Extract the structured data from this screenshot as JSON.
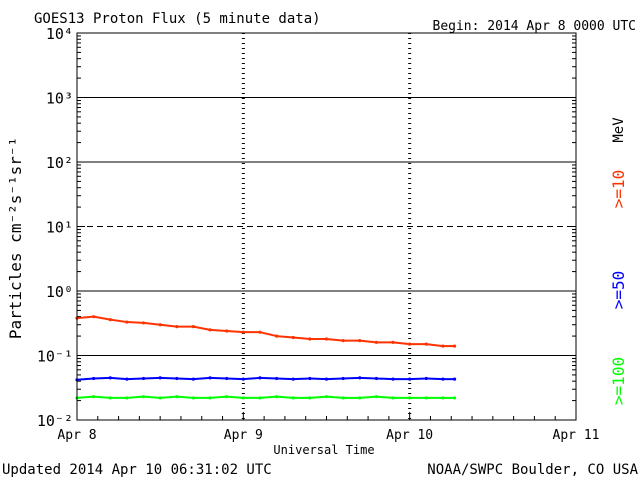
{
  "header": {
    "title": "GOES13 Proton Flux (5 minute data)",
    "begin": "Begin: 2014 Apr 8 0000 UTC"
  },
  "footer": {
    "updated": "Updated 2014 Apr 10 06:31:02 UTC",
    "credit": "NOAA/SWPC Boulder, CO USA"
  },
  "colors": {
    "ge10": "#ff3300",
    "ge50": "#0000ff",
    "ge100": "#00ff00",
    "axis": "#000000",
    "background": "#ffffff"
  },
  "chart_data": {
    "type": "line",
    "title": "GOES13 Proton Flux (5 minute data)",
    "xlabel": "Universal Time",
    "ylabel": "Particles cm⁻²s⁻¹sr⁻¹",
    "yscale": "log",
    "ylim": [
      0.01,
      10000
    ],
    "xlim_days": [
      0,
      3
    ],
    "x_ticks": [
      {
        "day": 0,
        "label": "Apr 8"
      },
      {
        "day": 1,
        "label": "Apr 9"
      },
      {
        "day": 2,
        "label": "Apr 10"
      },
      {
        "day": 3,
        "label": "Apr 11"
      }
    ],
    "y_ticks": [
      {
        "exp": -2,
        "label": "10⁻²"
      },
      {
        "exp": -1,
        "label": "10⁻¹"
      },
      {
        "exp": 0,
        "label": "10⁰"
      },
      {
        "exp": 1,
        "label": "10¹"
      },
      {
        "exp": 2,
        "label": "10²"
      },
      {
        "exp": 3,
        "label": "10³"
      },
      {
        "exp": 4,
        "label": "10⁴"
      }
    ],
    "threshold_lines": [
      {
        "value": 10,
        "style": "dashed"
      },
      {
        "value": 1,
        "style": "solid"
      },
      {
        "value": 0.1,
        "style": "solid"
      },
      {
        "value": 100,
        "style": "solid"
      },
      {
        "value": 1000,
        "style": "solid"
      }
    ],
    "unit_label": "MeV",
    "grid": "vertical dotted at day boundaries",
    "legend_placement": "right",
    "series": [
      {
        "name": ">=10",
        "color": "#ff3300",
        "x": [
          0.0,
          0.1,
          0.2,
          0.3,
          0.4,
          0.5,
          0.6,
          0.7,
          0.8,
          0.9,
          1.0,
          1.1,
          1.2,
          1.3,
          1.4,
          1.5,
          1.6,
          1.7,
          1.8,
          1.9,
          2.0,
          2.1,
          2.2,
          2.27
        ],
        "y": [
          0.38,
          0.4,
          0.36,
          0.33,
          0.32,
          0.3,
          0.28,
          0.28,
          0.25,
          0.24,
          0.23,
          0.23,
          0.2,
          0.19,
          0.18,
          0.18,
          0.17,
          0.17,
          0.16,
          0.16,
          0.15,
          0.15,
          0.14,
          0.14
        ]
      },
      {
        "name": ">=50",
        "color": "#0000ff",
        "x": [
          0.0,
          0.1,
          0.2,
          0.3,
          0.4,
          0.5,
          0.6,
          0.7,
          0.8,
          0.9,
          1.0,
          1.1,
          1.2,
          1.3,
          1.4,
          1.5,
          1.6,
          1.7,
          1.8,
          1.9,
          2.0,
          2.1,
          2.2,
          2.27
        ],
        "y": [
          0.042,
          0.044,
          0.045,
          0.043,
          0.044,
          0.045,
          0.044,
          0.043,
          0.045,
          0.044,
          0.043,
          0.045,
          0.044,
          0.043,
          0.044,
          0.043,
          0.044,
          0.045,
          0.044,
          0.043,
          0.043,
          0.044,
          0.043,
          0.043
        ]
      },
      {
        "name": ">=100",
        "color": "#00ff00",
        "x": [
          0.0,
          0.1,
          0.2,
          0.3,
          0.4,
          0.5,
          0.6,
          0.7,
          0.8,
          0.9,
          1.0,
          1.1,
          1.2,
          1.3,
          1.4,
          1.5,
          1.6,
          1.7,
          1.8,
          1.9,
          2.0,
          2.1,
          2.2,
          2.27
        ],
        "y": [
          0.022,
          0.023,
          0.022,
          0.022,
          0.023,
          0.022,
          0.023,
          0.022,
          0.022,
          0.023,
          0.022,
          0.022,
          0.023,
          0.022,
          0.022,
          0.023,
          0.022,
          0.022,
          0.023,
          0.022,
          0.022,
          0.022,
          0.022,
          0.022
        ]
      }
    ]
  }
}
